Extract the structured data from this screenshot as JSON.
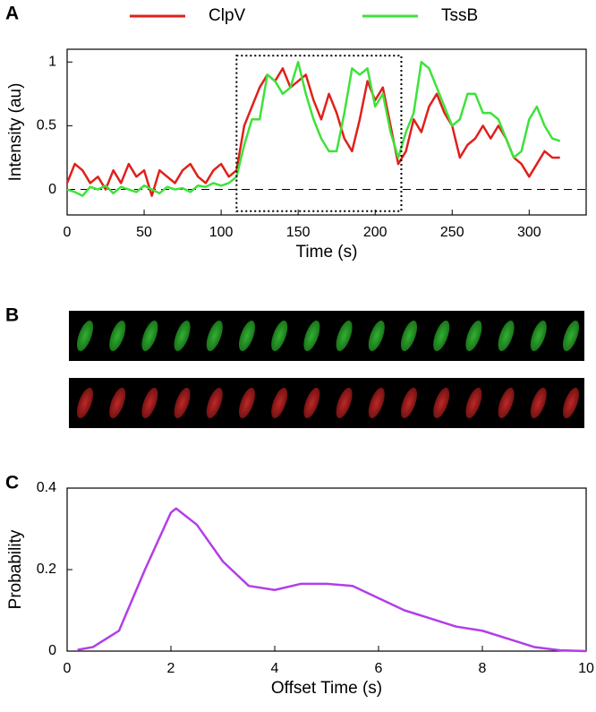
{
  "panel_labels": [
    "A",
    "B",
    "C"
  ],
  "chart_data": [
    {
      "type": "line",
      "ylabel": "Intensity (au)",
      "xlabel": "Time (s)",
      "x": [
        0,
        5,
        10,
        15,
        20,
        25,
        30,
        35,
        40,
        45,
        50,
        55,
        60,
        65,
        70,
        75,
        80,
        85,
        90,
        95,
        100,
        105,
        110,
        115,
        120,
        125,
        130,
        135,
        140,
        145,
        150,
        155,
        160,
        165,
        170,
        175,
        180,
        185,
        190,
        195,
        200,
        205,
        210,
        215,
        220,
        225,
        230,
        235,
        240,
        245,
        250,
        255,
        260,
        265,
        270,
        275,
        280,
        285,
        290,
        295,
        300,
        305,
        310,
        315,
        320
      ],
      "series": [
        {
          "name": "ClpV",
          "color": "#e0201b",
          "values": [
            0.05,
            0.2,
            0.15,
            0.05,
            0.1,
            0.0,
            0.15,
            0.05,
            0.2,
            0.1,
            0.15,
            -0.05,
            0.15,
            0.1,
            0.05,
            0.15,
            0.2,
            0.1,
            0.05,
            0.15,
            0.2,
            0.1,
            0.15,
            0.5,
            0.65,
            0.8,
            0.9,
            0.85,
            0.95,
            0.8,
            0.85,
            0.9,
            0.7,
            0.55,
            0.75,
            0.6,
            0.4,
            0.3,
            0.55,
            0.85,
            0.7,
            0.8,
            0.5,
            0.2,
            0.3,
            0.55,
            0.45,
            0.65,
            0.75,
            0.6,
            0.5,
            0.25,
            0.35,
            0.4,
            0.5,
            0.4,
            0.5,
            0.4,
            0.25,
            0.2,
            0.1,
            0.2,
            0.3,
            0.25,
            0.25
          ]
        },
        {
          "name": "TssB",
          "color": "#3ee23a",
          "values": [
            0,
            -0.02,
            -0.05,
            0.02,
            0,
            0.03,
            -0.03,
            0.02,
            0,
            -0.02,
            0.03,
            0,
            -0.03,
            0.02,
            0,
            0.01,
            -0.02,
            0.03,
            0.02,
            0.05,
            0.03,
            0.05,
            0.1,
            0.35,
            0.55,
            0.55,
            0.9,
            0.85,
            0.75,
            0.8,
            1.0,
            0.75,
            0.55,
            0.4,
            0.3,
            0.3,
            0.6,
            0.95,
            0.9,
            0.95,
            0.65,
            0.75,
            0.45,
            0.25,
            0.45,
            0.6,
            1.0,
            0.95,
            0.8,
            0.65,
            0.5,
            0.55,
            0.75,
            0.75,
            0.6,
            0.6,
            0.55,
            0.4,
            0.25,
            0.3,
            0.55,
            0.65,
            0.5,
            0.4,
            0.38
          ]
        }
      ],
      "xlim": [
        0,
        337
      ],
      "ylim": [
        -0.2,
        1.1
      ],
      "xticks": [
        0,
        50,
        100,
        150,
        200,
        250,
        300
      ],
      "yticks": [
        0,
        0.5,
        1
      ],
      "reference_line": 0,
      "box": {
        "x": [
          110,
          217
        ],
        "y": [
          -0.17,
          1.05
        ]
      }
    },
    {
      "type": "line",
      "ylabel": "Probability",
      "xlabel": "Offset Time (s)",
      "color": "#b23ee8",
      "x": [
        0.2,
        0.5,
        1,
        1.5,
        2,
        2.1,
        2.5,
        3,
        3.5,
        4,
        4.5,
        5,
        5.5,
        6,
        6.5,
        7,
        7.5,
        8,
        8.5,
        9,
        9.5,
        10
      ],
      "values": [
        0.003,
        0.01,
        0.05,
        0.2,
        0.34,
        0.35,
        0.31,
        0.22,
        0.16,
        0.15,
        0.165,
        0.165,
        0.16,
        0.13,
        0.1,
        0.08,
        0.06,
        0.05,
        0.03,
        0.01,
        0.002,
        0
      ],
      "xlim": [
        0,
        10
      ],
      "ylim": [
        0,
        0.4
      ],
      "xticks": [
        0,
        2,
        4,
        6,
        8,
        10
      ],
      "yticks": [
        0,
        0.2,
        0.4
      ]
    }
  ]
}
